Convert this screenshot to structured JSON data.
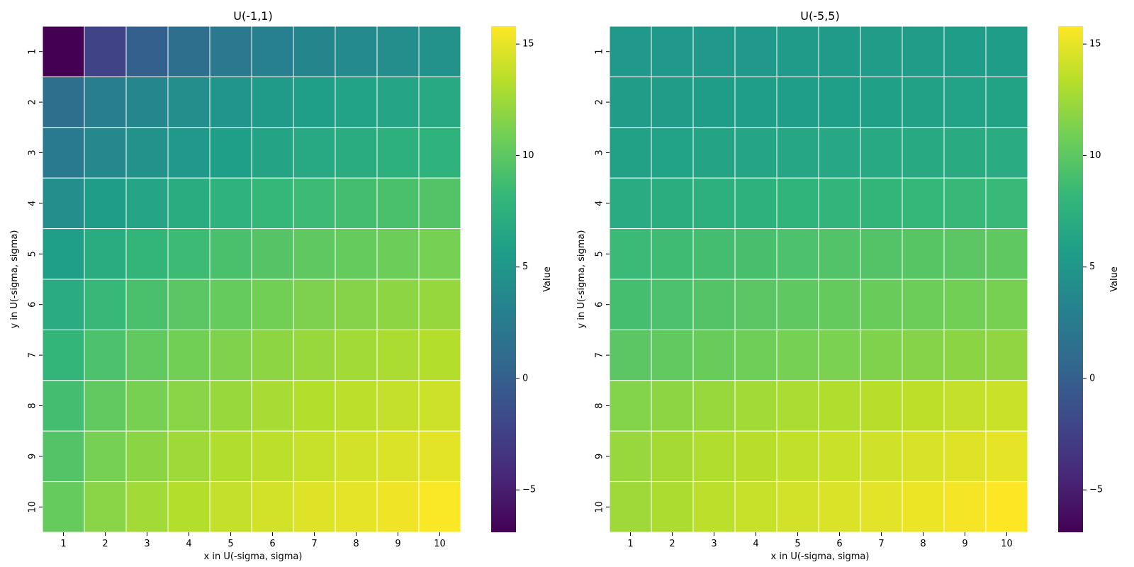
{
  "chart_data": [
    {
      "type": "heatmap",
      "title": "U(-1,1)",
      "xlabel": "x in U(-sigma, sigma)",
      "ylabel": "y in U(-sigma, sigma)",
      "x_categories": [
        "1",
        "2",
        "3",
        "4",
        "5",
        "6",
        "7",
        "8",
        "9",
        "10"
      ],
      "y_categories": [
        "1",
        "2",
        "3",
        "4",
        "5",
        "6",
        "7",
        "8",
        "9",
        "10"
      ],
      "values": [
        [
          -6.9,
          -2.3,
          0.0,
          1.3,
          2.3,
          3.0,
          3.5,
          3.9,
          4.3,
          4.6
        ],
        [
          1.3,
          2.7,
          3.6,
          4.3,
          4.9,
          5.4,
          5.8,
          6.1,
          6.4,
          6.7
        ],
        [
          2.4,
          3.7,
          4.6,
          5.3,
          5.8,
          6.3,
          6.7,
          7.1,
          7.4,
          7.7
        ],
        [
          4.3,
          5.6,
          6.4,
          7.1,
          7.7,
          8.2,
          8.6,
          8.9,
          9.2,
          9.6
        ],
        [
          5.8,
          7.1,
          8.0,
          8.6,
          9.2,
          9.7,
          10.1,
          10.4,
          10.7,
          11.0
        ],
        [
          7.0,
          8.3,
          9.2,
          9.9,
          10.4,
          10.9,
          11.3,
          11.6,
          11.9,
          12.2
        ],
        [
          8.0,
          9.3,
          10.2,
          10.9,
          11.4,
          11.9,
          12.3,
          12.6,
          12.9,
          13.2
        ],
        [
          8.9,
          10.2,
          11.1,
          11.7,
          12.3,
          12.8,
          13.2,
          13.5,
          13.8,
          14.1
        ],
        [
          9.6,
          11.0,
          11.8,
          12.5,
          13.1,
          13.5,
          13.9,
          14.3,
          14.6,
          14.9
        ],
        [
          10.4,
          11.7,
          12.6,
          13.2,
          13.8,
          14.3,
          14.7,
          15.0,
          15.3,
          15.7
        ]
      ],
      "colorbar": {
        "label": "Value",
        "min": -6.9,
        "max": 15.8,
        "ticks": [
          -5,
          0,
          5,
          10,
          15
        ],
        "tick_labels": [
          "−5",
          "0",
          "5",
          "10",
          "15"
        ]
      }
    },
    {
      "type": "heatmap",
      "title": "U(-5,5)",
      "xlabel": "x in U(-sigma, sigma)",
      "ylabel": "y in U(-sigma, sigma)",
      "x_categories": [
        "1",
        "2",
        "3",
        "4",
        "5",
        "6",
        "7",
        "8",
        "9",
        "10"
      ],
      "y_categories": [
        "1",
        "2",
        "3",
        "4",
        "5",
        "6",
        "7",
        "8",
        "9",
        "10"
      ],
      "values": [
        [
          5.2,
          5.2,
          5.3,
          5.3,
          5.4,
          5.4,
          5.5,
          5.5,
          5.6,
          5.6
        ],
        [
          5.5,
          5.5,
          5.6,
          5.7,
          5.7,
          5.8,
          5.9,
          6.0,
          6.1,
          6.2
        ],
        [
          6.0,
          6.1,
          6.3,
          6.4,
          6.5,
          6.6,
          6.7,
          6.8,
          6.9,
          7.0
        ],
        [
          7.0,
          7.2,
          7.4,
          7.6,
          7.8,
          7.9,
          8.0,
          8.2,
          8.3,
          8.4
        ],
        [
          8.5,
          8.7,
          8.9,
          9.1,
          9.3,
          9.5,
          9.6,
          9.8,
          9.9,
          10.1
        ],
        [
          9.0,
          9.3,
          9.6,
          9.9,
          10.1,
          10.3,
          10.5,
          10.7,
          10.9,
          11.1
        ],
        [
          9.9,
          10.2,
          10.5,
          10.8,
          11.0,
          11.2,
          11.4,
          11.6,
          11.8,
          12.0
        ],
        [
          11.5,
          11.9,
          12.3,
          12.6,
          12.9,
          13.1,
          13.3,
          13.6,
          13.8,
          14.0
        ],
        [
          12.3,
          12.7,
          13.1,
          13.4,
          13.7,
          14.0,
          14.2,
          14.5,
          14.7,
          15.0
        ],
        [
          12.5,
          13.0,
          13.5,
          13.9,
          14.3,
          14.6,
          14.9,
          15.2,
          15.5,
          15.8
        ]
      ],
      "colorbar": {
        "label": "Value",
        "min": -6.9,
        "max": 15.8,
        "ticks": [
          -5,
          0,
          5,
          10,
          15
        ],
        "tick_labels": [
          "−5",
          "0",
          "5",
          "10",
          "15"
        ]
      }
    }
  ],
  "colors": {
    "viridis": [
      "#440154",
      "#482878",
      "#3e4989",
      "#31688e",
      "#26828e",
      "#1f9e89",
      "#35b779",
      "#6ece58",
      "#b5de2b",
      "#fde725"
    ],
    "cell_border": "#ffffff",
    "axis_text": "#000000"
  }
}
